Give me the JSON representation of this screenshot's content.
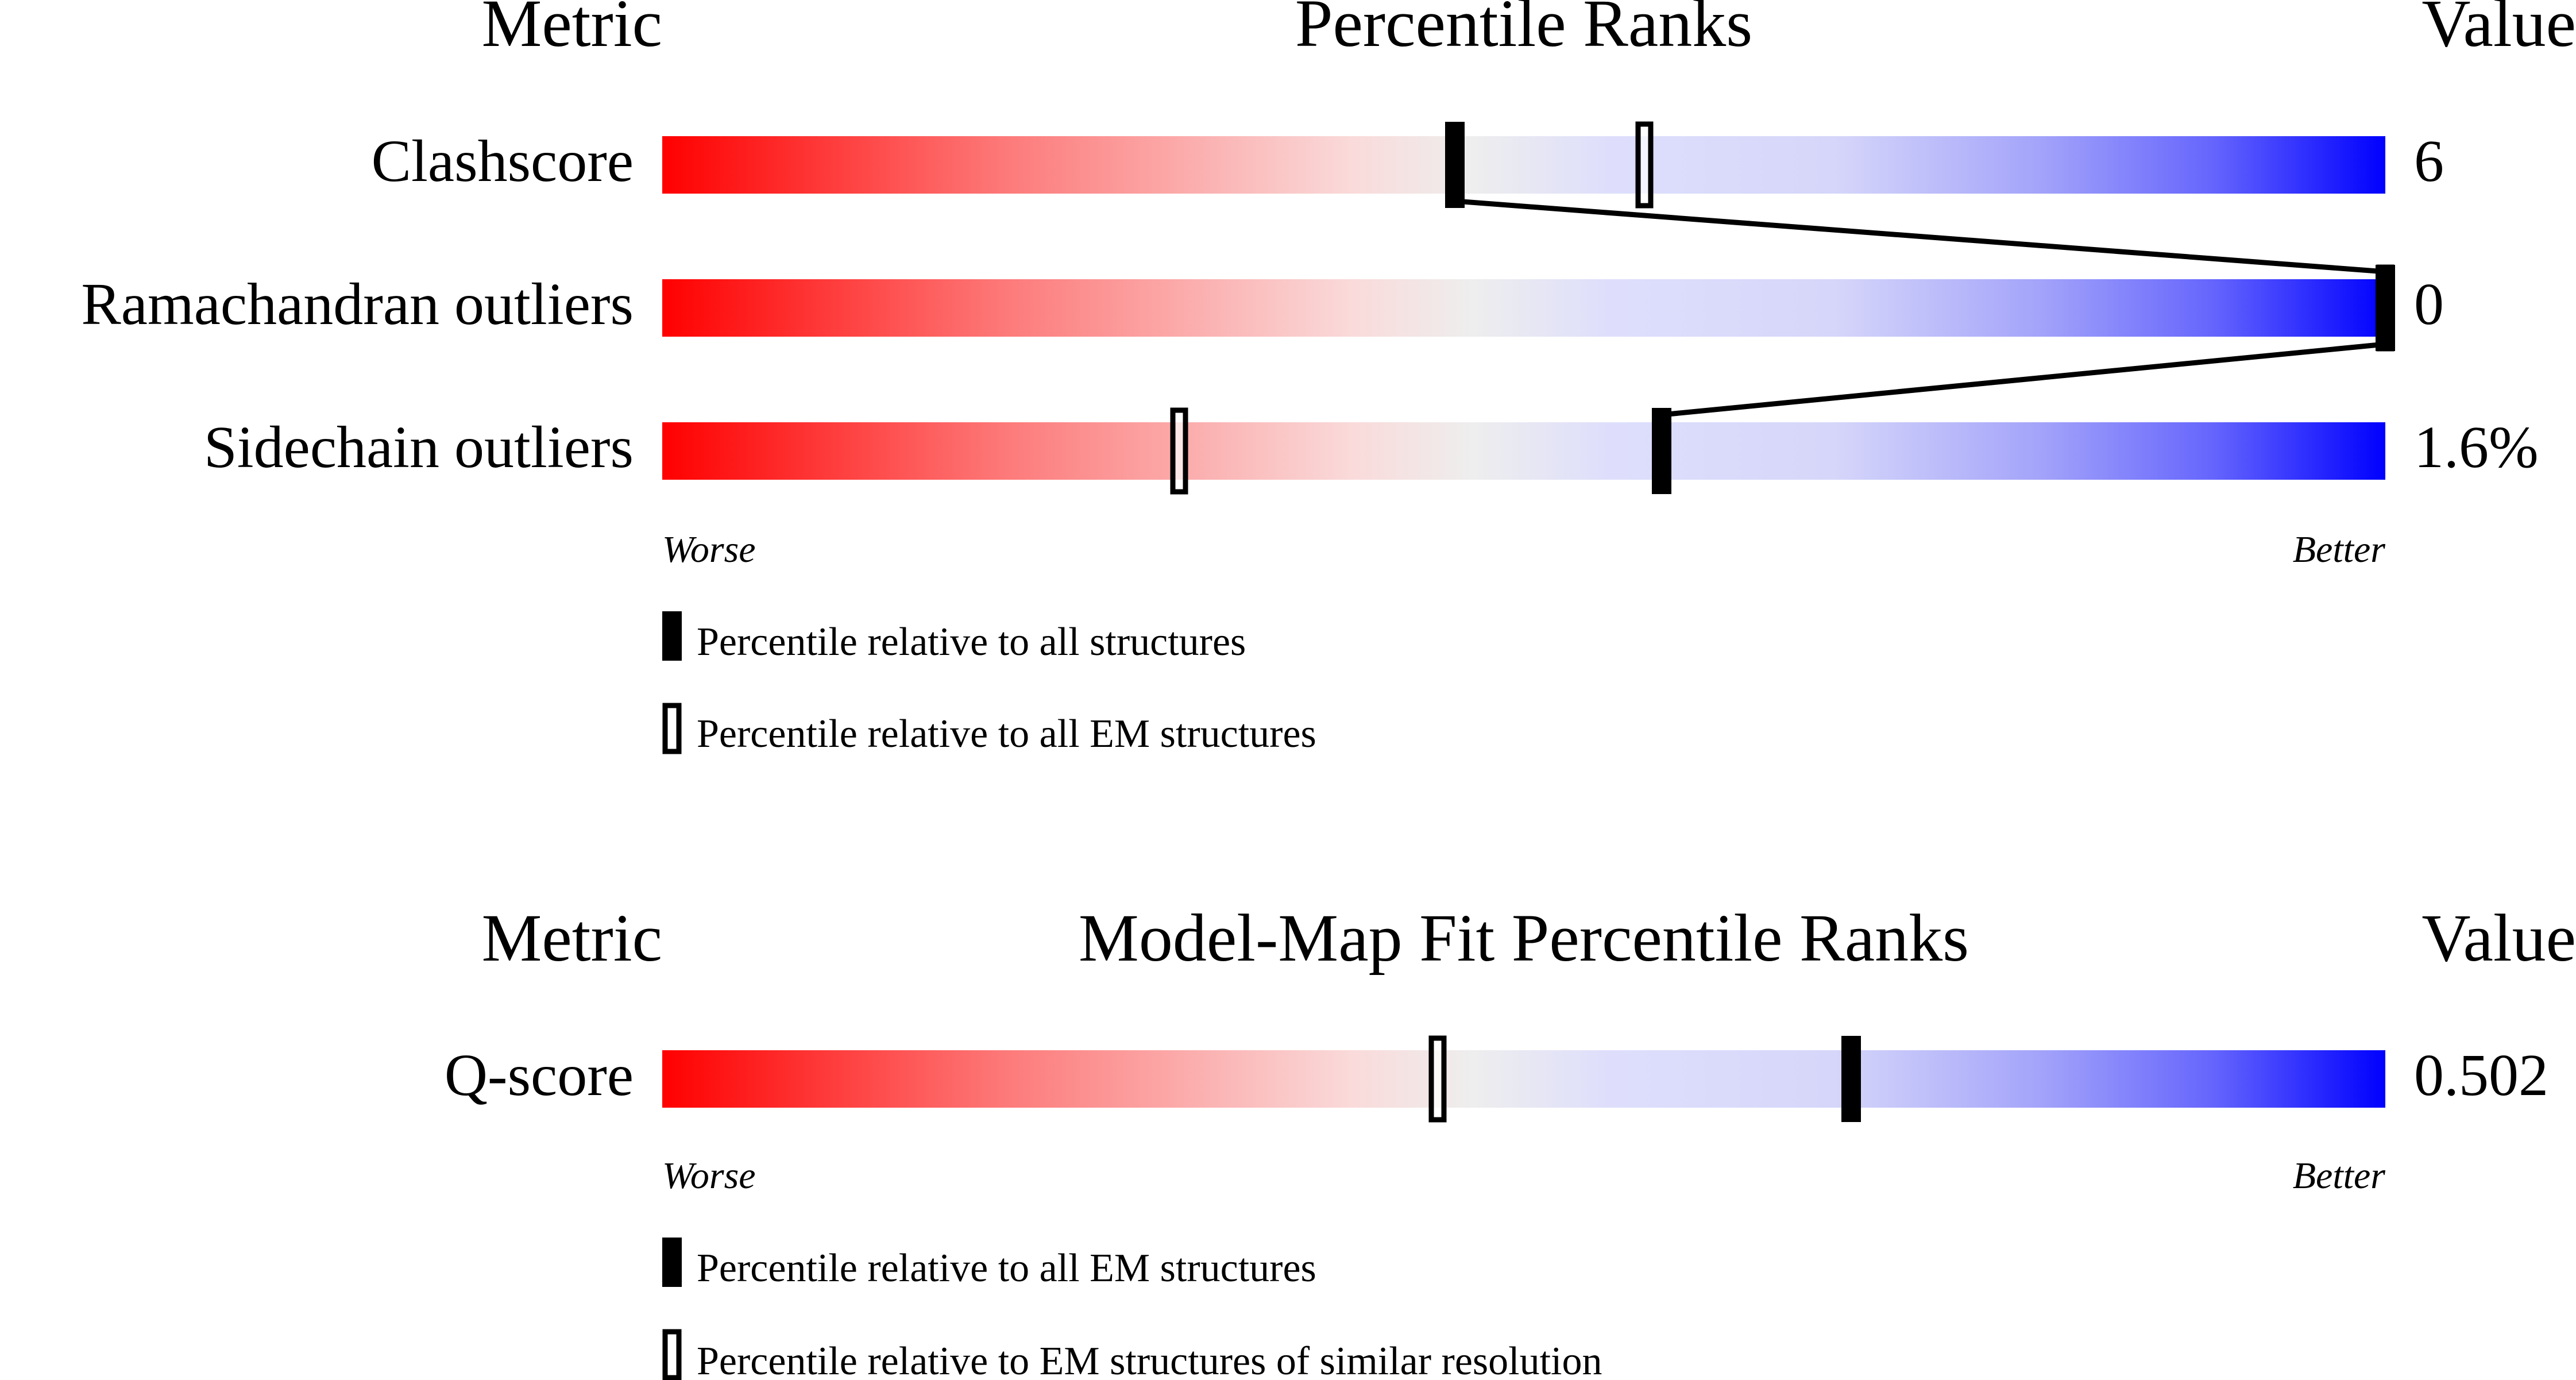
{
  "chart_data": [
    {
      "type": "bar",
      "title": "Percentile Ranks",
      "metric_header": "Metric",
      "value_header": "Value",
      "xlim": [
        0,
        100
      ],
      "worse_label": "Worse",
      "better_label": "Better",
      "metrics": [
        {
          "name": "Clashscore",
          "value": "6",
          "percentile_all": 46,
          "percentile_secondary": 57
        },
        {
          "name": "Ramachandran outliers",
          "value": "0",
          "percentile_all": 100,
          "percentile_secondary": 100
        },
        {
          "name": "Sidechain outliers",
          "value": "1.6%",
          "percentile_all": 58,
          "percentile_secondary": 30
        }
      ],
      "legend": {
        "filled": "Percentile relative to all structures",
        "open": "Percentile relative to all EM structures"
      }
    },
    {
      "type": "bar",
      "title": "Model-Map Fit Percentile Ranks",
      "metric_header": "Metric",
      "value_header": "Value",
      "xlim": [
        0,
        100
      ],
      "worse_label": "Worse",
      "better_label": "Better",
      "metrics": [
        {
          "name": "Q-score",
          "value": "0.502",
          "percentile_all": 69,
          "percentile_secondary": 45
        }
      ],
      "legend": {
        "filled": "Percentile relative to all EM structures",
        "open": "Percentile relative to EM structures of similar resolution"
      }
    }
  ],
  "colors": {
    "worse": "#ff0000",
    "middle": "#eeeeee",
    "better": "#0000ff",
    "marker": "#000000"
  }
}
